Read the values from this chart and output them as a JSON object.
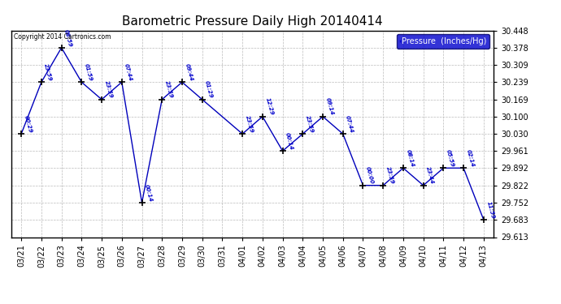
{
  "title": "Barometric Pressure Daily High 20140414",
  "ylabel": "Pressure  (Inches/Hg)",
  "copyright": "Copyright 2014 Cartronics.com",
  "ylim": [
    29.613,
    30.448
  ],
  "yticks": [
    29.613,
    29.683,
    29.752,
    29.822,
    29.892,
    29.961,
    30.03,
    30.1,
    30.169,
    30.239,
    30.309,
    30.378,
    30.448
  ],
  "all_dates": [
    "03/21",
    "03/22",
    "03/23",
    "03/24",
    "03/25",
    "03/26",
    "03/27",
    "03/28",
    "03/29",
    "03/30",
    "03/31",
    "04/01",
    "04/02",
    "04/03",
    "04/04",
    "04/05",
    "04/06",
    "04/07",
    "04/08",
    "04/09",
    "04/10",
    "04/11",
    "04/12",
    "04/13"
  ],
  "data_dates": [
    "03/21",
    "03/22",
    "03/23",
    "03/24",
    "03/25",
    "03/26",
    "03/27",
    "03/28",
    "03/29",
    "03/30",
    "04/01",
    "04/02",
    "04/03",
    "04/04",
    "04/05",
    "04/06",
    "04/07",
    "04/08",
    "04/09",
    "04/10",
    "04/11",
    "04/12",
    "04/13"
  ],
  "values": [
    30.03,
    30.239,
    30.378,
    30.239,
    30.169,
    30.239,
    29.752,
    30.169,
    30.239,
    30.169,
    30.03,
    30.1,
    29.961,
    30.03,
    30.1,
    30.03,
    29.822,
    29.822,
    29.892,
    29.822,
    29.892,
    29.892,
    29.683
  ],
  "times": [
    "00:29",
    "23:59",
    "08:59",
    "01:59",
    "23:59",
    "07:44",
    "00:14",
    "23:59",
    "09:44",
    "01:29",
    "23:59",
    "12:29",
    "00:14",
    "23:59",
    "09:14",
    "07:44",
    "00:00",
    "23:59",
    "08:14",
    "23:44",
    "05:59",
    "02:14",
    "11:59"
  ],
  "line_color": "#0000bb",
  "marker_color": "#000000",
  "grid_color": "#bbbbbb",
  "bg_color": "#ffffff",
  "legend_bg": "#0000cc",
  "legend_text": "#ffffff",
  "title_color": "#000000",
  "annotation_color": "#0000cc",
  "copyright_color": "#000000",
  "border_color": "#000000"
}
